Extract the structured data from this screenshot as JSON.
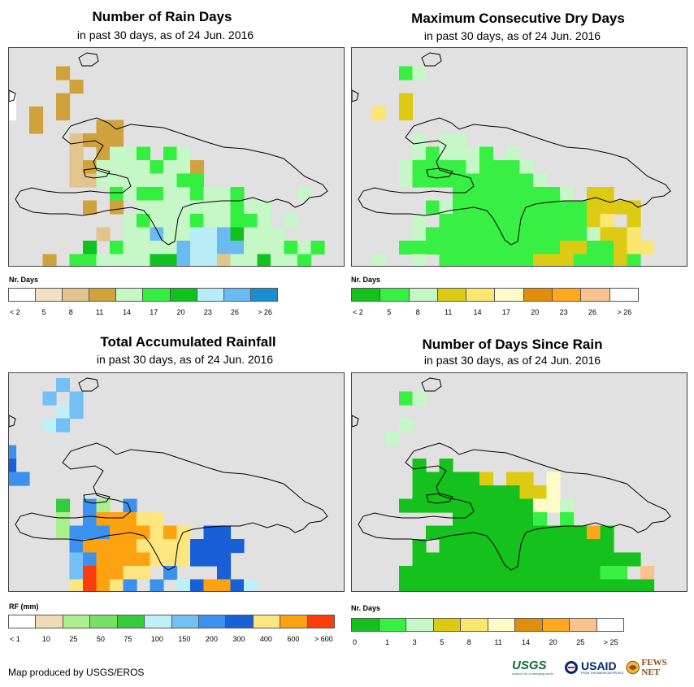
{
  "panels": [
    {
      "id": "rain-days",
      "title": "Number of Rain Days",
      "subtitle": "in past 30 days, as of 24 Jun. 2016",
      "legend_title": "Nr. Days",
      "legend_colors": [
        "#ffffff",
        "#f5dfc2",
        "#e2c48c",
        "#cfa23c",
        "#c6f7c6",
        "#33f040",
        "#10c21d",
        "#b8ecf7",
        "#6bbaf2",
        "#1a8fcf"
      ],
      "legend_ticks": [
        "< 2",
        "5",
        "8",
        "11",
        "14",
        "17",
        "20",
        "23",
        "26",
        "> 26"
      ]
    },
    {
      "id": "max-dry-days",
      "title": "Maximum Consecutive Dry Days",
      "subtitle": "in past 30 days, as of 24 Jun. 2016",
      "legend_title": "Nr. Days",
      "legend_colors": [
        "#15c21d",
        "#38f043",
        "#c6f7c6",
        "#dccb12",
        "#fbe66f",
        "#fffbc9",
        "#e08e0b",
        "#ffa81e",
        "#fbc18f",
        "#ffffff"
      ],
      "legend_ticks": [
        "< 2",
        "5",
        "8",
        "11",
        "14",
        "17",
        "20",
        "23",
        "26",
        "> 26"
      ]
    },
    {
      "id": "total-rainfall",
      "title": "Total Accumulated Rainfall",
      "subtitle": "in past 30 days, as of 24 Jun. 2016",
      "legend_title": "RF (mm)",
      "legend_colors": [
        "#ffffff",
        "#f0dbb5",
        "#abf08d",
        "#78e064",
        "#36cb3c",
        "#bff0fa",
        "#74c0f6",
        "#3a91ee",
        "#1960d8",
        "#fde57f",
        "#ffa20f",
        "#fa3d0b"
      ],
      "legend_ticks": [
        "< 1",
        "10",
        "25",
        "50",
        "75",
        "100",
        "150",
        "200",
        "300",
        "400",
        "600",
        "> 600"
      ]
    },
    {
      "id": "days-since-rain",
      "title": "Number of Days Since Rain",
      "subtitle": "in past 30 days, as of 24 Jun. 2016",
      "legend_title": "Nr. Days",
      "legend_colors": [
        "#15c21d",
        "#38f043",
        "#c6f7c6",
        "#dccb12",
        "#fbe66f",
        "#fffbc9",
        "#e08e0b",
        "#ffa81e",
        "#fbc18f",
        "#ffffff"
      ],
      "legend_ticks": [
        "0",
        "1",
        "3",
        "5",
        "8",
        "11",
        "14",
        "20",
        "25",
        "> 25"
      ]
    }
  ],
  "credit": "Map produced by USGS/EROS",
  "logos": {
    "usgs": "USGS",
    "usgs_tagline": "science for a changing world",
    "usaid": "USAID",
    "usaid_tagline": "FROM THE AMERICAN PEOPLE",
    "fewsnet": "FEWS NET"
  }
}
